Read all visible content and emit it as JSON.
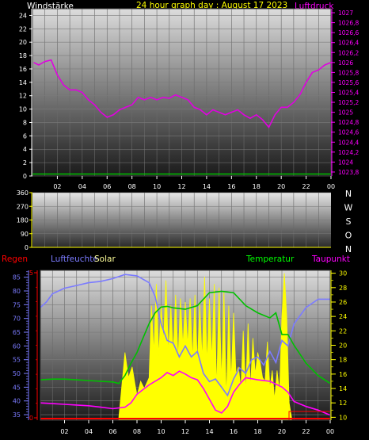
{
  "chart_data": [
    {
      "type": "line",
      "title": "24 hour graph day : August 17 2023",
      "left_axis_label": "Windstärke",
      "right_axis_label": "Luftdruck",
      "x_ticks": [
        "02",
        "04",
        "06",
        "08",
        "10",
        "12",
        "14",
        "16",
        "18",
        "20",
        "22",
        "00"
      ],
      "left_ticks": [
        "0",
        "2",
        "4",
        "6",
        "8",
        "10",
        "12",
        "14",
        "16",
        "18",
        "20",
        "22",
        "24"
      ],
      "left_range": [
        0,
        25
      ],
      "right_ticks": [
        "1023,8",
        "1024",
        "1024,2",
        "1024,4",
        "1024,6",
        "1024,8",
        "1025",
        "1025,2",
        "1025,4",
        "1025,6",
        "1025,8",
        "1026",
        "1026,2",
        "1026,4",
        "1026,6",
        "1026,8",
        "1027"
      ],
      "right_range": [
        1023.72,
        1027.08
      ],
      "grid": true,
      "series": [
        {
          "name": "Luftdruck",
          "axis": "right",
          "color": "#e000e0",
          "x": [
            0.1,
            0.5,
            1,
            1.5,
            2,
            2.5,
            3,
            3.5,
            4,
            4.5,
            5,
            5.5,
            6,
            6.5,
            7,
            7.5,
            8,
            8.5,
            9,
            9.5,
            10,
            10.5,
            11,
            11.5,
            12,
            12.5,
            13,
            13.5,
            14,
            14.5,
            15,
            15.5,
            16,
            16.5,
            17,
            17.5,
            18,
            18.5,
            19,
            19.5,
            20,
            20.5,
            21,
            21.5,
            22,
            22.5,
            23,
            23.5,
            24
          ],
          "values": [
            1026.0,
            1025.95,
            1026.02,
            1026.05,
            1025.75,
            1025.55,
            1025.45,
            1025.45,
            1025.4,
            1025.25,
            1025.15,
            1025.0,
            1024.9,
            1024.95,
            1025.05,
            1025.1,
            1025.15,
            1025.3,
            1025.25,
            1025.3,
            1025.25,
            1025.3,
            1025.28,
            1025.35,
            1025.3,
            1025.25,
            1025.1,
            1025.05,
            1024.95,
            1025.05,
            1025.0,
            1024.95,
            1025.0,
            1025.05,
            1024.95,
            1024.88,
            1024.95,
            1024.85,
            1024.7,
            1024.95,
            1025.1,
            1025.1,
            1025.2,
            1025.35,
            1025.6,
            1025.8,
            1025.85,
            1025.95,
            1026.0
          ]
        },
        {
          "name": "Windstärke",
          "axis": "left",
          "color": "#00c000",
          "x": [
            0,
            24
          ],
          "values": [
            0.3,
            0.3
          ]
        }
      ]
    },
    {
      "type": "line",
      "right_letters": [
        "N",
        "W",
        "S",
        "O",
        "N"
      ],
      "left_ticks": [
        "0",
        "90",
        "180",
        "270",
        "360"
      ],
      "left_range": [
        0,
        360
      ],
      "series": []
    },
    {
      "type": "line",
      "labels": {
        "regen": "Regen",
        "luftfeuchte": "Luftfeuchte",
        "solar": "Solar",
        "temperatur": "Temperatur",
        "taupunkt": "Taupunkt"
      },
      "x_ticks": [
        "02",
        "04",
        "06",
        "08",
        "10",
        "12",
        "14",
        "16",
        "18",
        "20",
        "22",
        "00"
      ],
      "humidity_ticks": [
        "35",
        "40",
        "45",
        "50",
        "55",
        "60",
        "65",
        "70",
        "75",
        "80",
        "85"
      ],
      "humidity_range": [
        33,
        87.5
      ],
      "rain_ticks": [
        "0",
        "5"
      ],
      "temp_ticks": [
        "10",
        "12",
        "14",
        "16",
        "18",
        "20",
        "22",
        "24",
        "26",
        "28",
        "30"
      ],
      "temp_range": [
        9.6,
        30.4
      ],
      "grid": true,
      "series": [
        {
          "name": "Luftfeuchte",
          "axis": "humidity",
          "color": "#7b7bff",
          "x": [
            0,
            0.5,
            1,
            2,
            3,
            4,
            5,
            6,
            7,
            8,
            9,
            9.5,
            10,
            10.5,
            11,
            11.5,
            12,
            12.5,
            13,
            13.5,
            14,
            14.5,
            15,
            15.5,
            16,
            16.5,
            17,
            17.5,
            18,
            18.5,
            19,
            19.5,
            20,
            20.5,
            21,
            22,
            23,
            24
          ],
          "values": [
            74,
            76,
            79,
            81,
            82,
            83,
            83.5,
            84.5,
            86,
            85.5,
            83,
            78,
            68,
            62,
            61,
            56,
            60,
            56,
            58,
            50,
            47,
            48,
            45,
            42,
            48,
            52,
            50,
            55,
            56,
            53,
            58,
            54,
            62,
            60,
            68,
            74,
            77,
            77
          ]
        },
        {
          "name": "Temperatur",
          "axis": "temp",
          "color": "#00c000",
          "x": [
            0,
            1,
            2,
            3,
            4,
            5,
            6,
            6.5,
            7,
            7.5,
            8,
            8.5,
            9,
            9.5,
            10,
            10.5,
            11,
            12,
            13,
            14,
            15,
            16,
            17,
            18,
            19,
            19.5,
            20,
            20.5,
            21,
            22,
            23,
            24
          ],
          "values": [
            15.2,
            15.3,
            15.3,
            15.2,
            15.1,
            15.0,
            14.9,
            14.7,
            15.8,
            17.5,
            19.0,
            21.0,
            23.0,
            24.5,
            25.3,
            25.4,
            25.2,
            25.0,
            25.5,
            27.3,
            27.5,
            27.3,
            25.5,
            24.5,
            23.8,
            24.5,
            21.5,
            21.5,
            20.0,
            17.5,
            15.8,
            14.7
          ]
        },
        {
          "name": "Taupunkt",
          "axis": "temp",
          "color": "#ff00ff",
          "x": [
            0,
            1,
            2,
            3,
            4,
            5,
            6,
            7,
            7.5,
            8,
            9,
            10,
            10.5,
            11,
            11.5,
            12,
            12.5,
            13,
            13.5,
            14,
            14.5,
            15,
            15.5,
            16,
            16.5,
            17,
            18,
            19,
            20,
            20.5,
            21,
            22,
            23,
            24
          ],
          "values": [
            12.0,
            11.9,
            11.8,
            11.7,
            11.6,
            11.4,
            11.2,
            11.4,
            12.0,
            13.2,
            14.5,
            15.5,
            16.2,
            15.8,
            16.4,
            16.0,
            15.5,
            15.2,
            14.0,
            12.5,
            11.0,
            10.6,
            11.5,
            13.5,
            14.6,
            15.5,
            15.2,
            15.0,
            14.2,
            13.5,
            12.2,
            11.5,
            11.0,
            10.3
          ]
        },
        {
          "name": "Solar",
          "axis": "temp",
          "color": "#ffff00",
          "x": [
            6.5,
            7,
            7.3,
            7.6,
            8,
            8.3,
            8.6,
            9,
            9.2,
            9.4,
            9.6,
            9.8,
            10,
            10.2,
            10.4,
            10.6,
            10.8,
            11,
            11.2,
            11.4,
            11.6,
            11.8,
            12,
            12.2,
            12.4,
            12.6,
            12.8,
            13,
            13.2,
            13.4,
            13.6,
            13.8,
            14,
            14.2,
            14.4,
            14.6,
            14.8,
            15,
            15.2,
            15.4,
            15.6,
            15.8,
            16,
            16.2,
            16.4,
            16.6,
            16.8,
            17,
            17.2,
            17.4,
            17.6,
            17.8,
            18,
            18.2,
            18.4,
            18.6,
            18.8,
            19,
            19.2,
            19.4,
            19.6,
            19.8,
            20,
            20.2,
            20.4,
            20.6,
            20.8
          ],
          "values": [
            10.0,
            19.0,
            15.5,
            17.0,
            13.0,
            15.0,
            14.0,
            15.5,
            25.5,
            19.0,
            28.5,
            18.5,
            25.5,
            20.5,
            29.0,
            19.0,
            25.5,
            19.0,
            27.0,
            18.0,
            26.5,
            20.0,
            26.0,
            20.0,
            26.5,
            18.0,
            27.0,
            17.5,
            26.0,
            18.0,
            29.5,
            17.5,
            26.5,
            18.0,
            28.5,
            14.0,
            28.0,
            15.0,
            27.5,
            12.5,
            25.5,
            15.0,
            24.5,
            16.0,
            17.0,
            14.0,
            22.0,
            13.5,
            23.0,
            14.0,
            21.0,
            16.0,
            19.0,
            17.5,
            15.5,
            15.0,
            20.5,
            14.0,
            16.5,
            12.5,
            16.5,
            13.5,
            24.0,
            30.0,
            24.0,
            12.0,
            10.0
          ]
        },
        {
          "name": "Regen",
          "axis": "rain",
          "color": "#ff0000",
          "x": [
            0,
            24
          ],
          "values": [
            0,
            0
          ]
        }
      ]
    }
  ]
}
